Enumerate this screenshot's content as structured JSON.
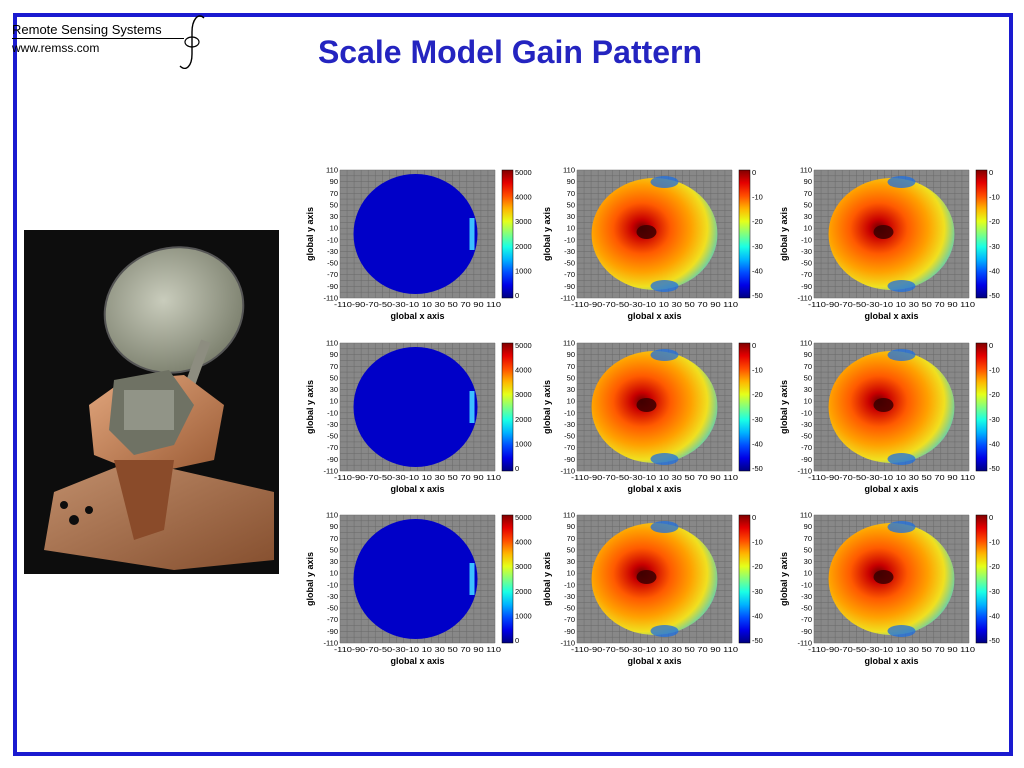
{
  "logo": {
    "name": "Remote Sensing Systems",
    "url": "www.remss.com"
  },
  "title": "Scale Model Gain Pattern",
  "colors": {
    "border": "#1a1ad0",
    "title": "#2424c0",
    "plot_bg": "#888888"
  },
  "panels": {
    "xlabel": "global x axis",
    "ylabel": "global y axis",
    "ticks": [
      "110",
      "90",
      "70",
      "50",
      "30",
      "10",
      "-10",
      "-30",
      "-50",
      "-70",
      "-90",
      "-110"
    ],
    "xticks_text": "-110-90-70-50-30-10 10 30 50 70 90 110",
    "colorbar_gain": [
      "5000",
      "4000",
      "3000",
      "2000",
      "1000",
      "0"
    ],
    "colorbar_db": [
      "0",
      "-10",
      "-20",
      "-30",
      "-40",
      "-50"
    ]
  }
}
